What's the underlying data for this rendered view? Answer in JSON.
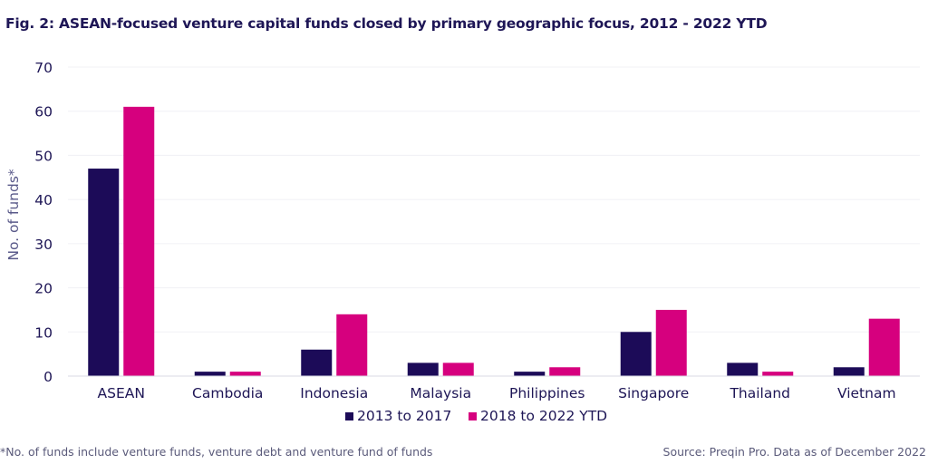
{
  "title": "Fig. 2: ASEAN-focused venture capital funds closed by primary geographic focus, 2012 - 2022 YTD",
  "footnote": "*No. of funds include venture funds, venture debt and venture fund of funds",
  "source": "Source: Preqin Pro. Data as of December 2022",
  "colors": {
    "series1": "#1c0b58",
    "series2": "#d6007e",
    "text": "#1e1656"
  },
  "chart_data": {
    "type": "bar",
    "title": "Fig. 2: ASEAN-focused venture capital funds closed by primary geographic focus, 2012 - 2022 YTD",
    "xlabel": "",
    "ylabel": "No. of funds*",
    "ylim": [
      0,
      70
    ],
    "yticks": [
      0,
      10,
      20,
      30,
      40,
      50,
      60,
      70
    ],
    "grid": true,
    "legend_position": "bottom",
    "categories": [
      "ASEAN",
      "Cambodia",
      "Indonesia",
      "Malaysia",
      "Philippines",
      "Singapore",
      "Thailand",
      "Vietnam"
    ],
    "series": [
      {
        "name": "2013 to 2017",
        "values": [
          47,
          1,
          6,
          3,
          1,
          10,
          3,
          2
        ]
      },
      {
        "name": "2018 to 2022 YTD",
        "values": [
          61,
          1,
          14,
          3,
          2,
          15,
          1,
          13
        ]
      }
    ]
  }
}
